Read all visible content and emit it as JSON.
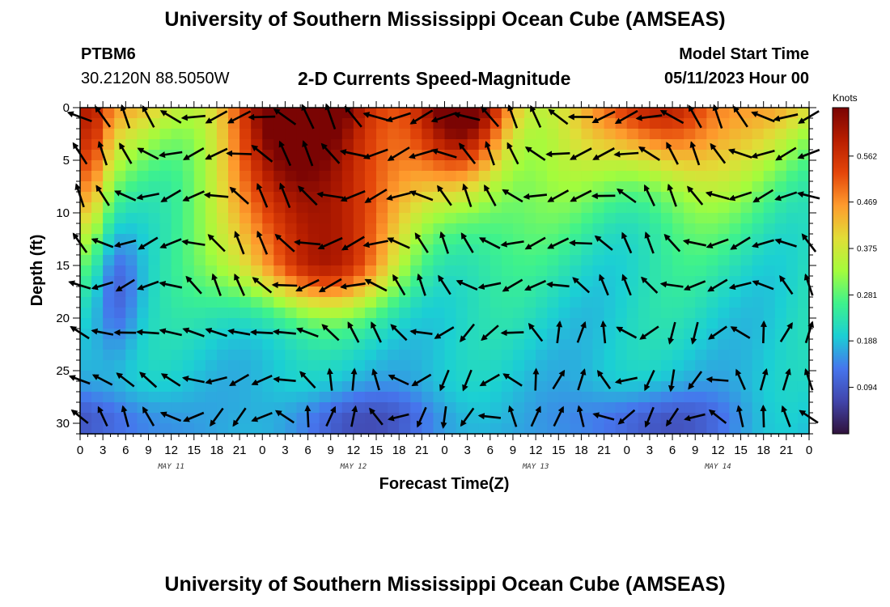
{
  "page": {
    "title": "University of Southern Mississippi Ocean Cube (AMSEAS)",
    "footer_title": "University of Southern Mississippi Ocean Cube (AMSEAS)",
    "station_id": "PTBM6",
    "station_coords": "30.2120N  88.5050W",
    "subtitle": "2-D Currents Speed-Magnitude",
    "model_start_label": "Model Start Time",
    "model_start_value": "05/11/2023 Hour 00"
  },
  "chart_data": {
    "type": "heatmap",
    "title": "2-D Currents Speed-Magnitude",
    "xlabel": "Forecast Time(Z)",
    "ylabel": "Depth (ft)",
    "x_range_hours": [
      0,
      96
    ],
    "y_range_ft": [
      0,
      31
    ],
    "x_ticks": [
      {
        "h": 0,
        "label": "0"
      },
      {
        "h": 3,
        "label": "3"
      },
      {
        "h": 6,
        "label": "6"
      },
      {
        "h": 9,
        "label": "9"
      },
      {
        "h": 12,
        "label": "12"
      },
      {
        "h": 15,
        "label": "15"
      },
      {
        "h": 18,
        "label": "18"
      },
      {
        "h": 21,
        "label": "21"
      },
      {
        "h": 24,
        "label": "0"
      },
      {
        "h": 27,
        "label": "3"
      },
      {
        "h": 30,
        "label": "6"
      },
      {
        "h": 33,
        "label": "9"
      },
      {
        "h": 36,
        "label": "12"
      },
      {
        "h": 39,
        "label": "15"
      },
      {
        "h": 42,
        "label": "18"
      },
      {
        "h": 45,
        "label": "21"
      },
      {
        "h": 48,
        "label": "0"
      },
      {
        "h": 51,
        "label": "3"
      },
      {
        "h": 54,
        "label": "6"
      },
      {
        "h": 57,
        "label": "9"
      },
      {
        "h": 60,
        "label": "12"
      },
      {
        "h": 63,
        "label": "15"
      },
      {
        "h": 66,
        "label": "18"
      },
      {
        "h": 69,
        "label": "21"
      },
      {
        "h": 72,
        "label": "0"
      },
      {
        "h": 75,
        "label": "3"
      },
      {
        "h": 78,
        "label": "6"
      },
      {
        "h": 81,
        "label": "9"
      },
      {
        "h": 84,
        "label": "12"
      },
      {
        "h": 87,
        "label": "15"
      },
      {
        "h": 90,
        "label": "18"
      },
      {
        "h": 93,
        "label": "21"
      },
      {
        "h": 96,
        "label": "0"
      }
    ],
    "day_labels": [
      {
        "h": 12,
        "label": "MAY 11"
      },
      {
        "h": 36,
        "label": "MAY 12"
      },
      {
        "h": 60,
        "label": "MAY 13"
      },
      {
        "h": 84,
        "label": "MAY 14"
      }
    ],
    "y_ticks": [
      {
        "ft": 0,
        "label": "0"
      },
      {
        "ft": 5,
        "label": "5"
      },
      {
        "ft": 10,
        "label": "10"
      },
      {
        "ft": 15,
        "label": "15"
      },
      {
        "ft": 20,
        "label": "20"
      },
      {
        "ft": 25,
        "label": "25"
      },
      {
        "ft": 30,
        "label": "30"
      }
    ],
    "colorbar": {
      "unit": "Knots",
      "range": [
        0.0,
        0.66
      ],
      "ticks": [
        "0.094",
        "0.188",
        "0.281",
        "0.375",
        "0.469",
        "0.562"
      ]
    },
    "grid": false
  }
}
